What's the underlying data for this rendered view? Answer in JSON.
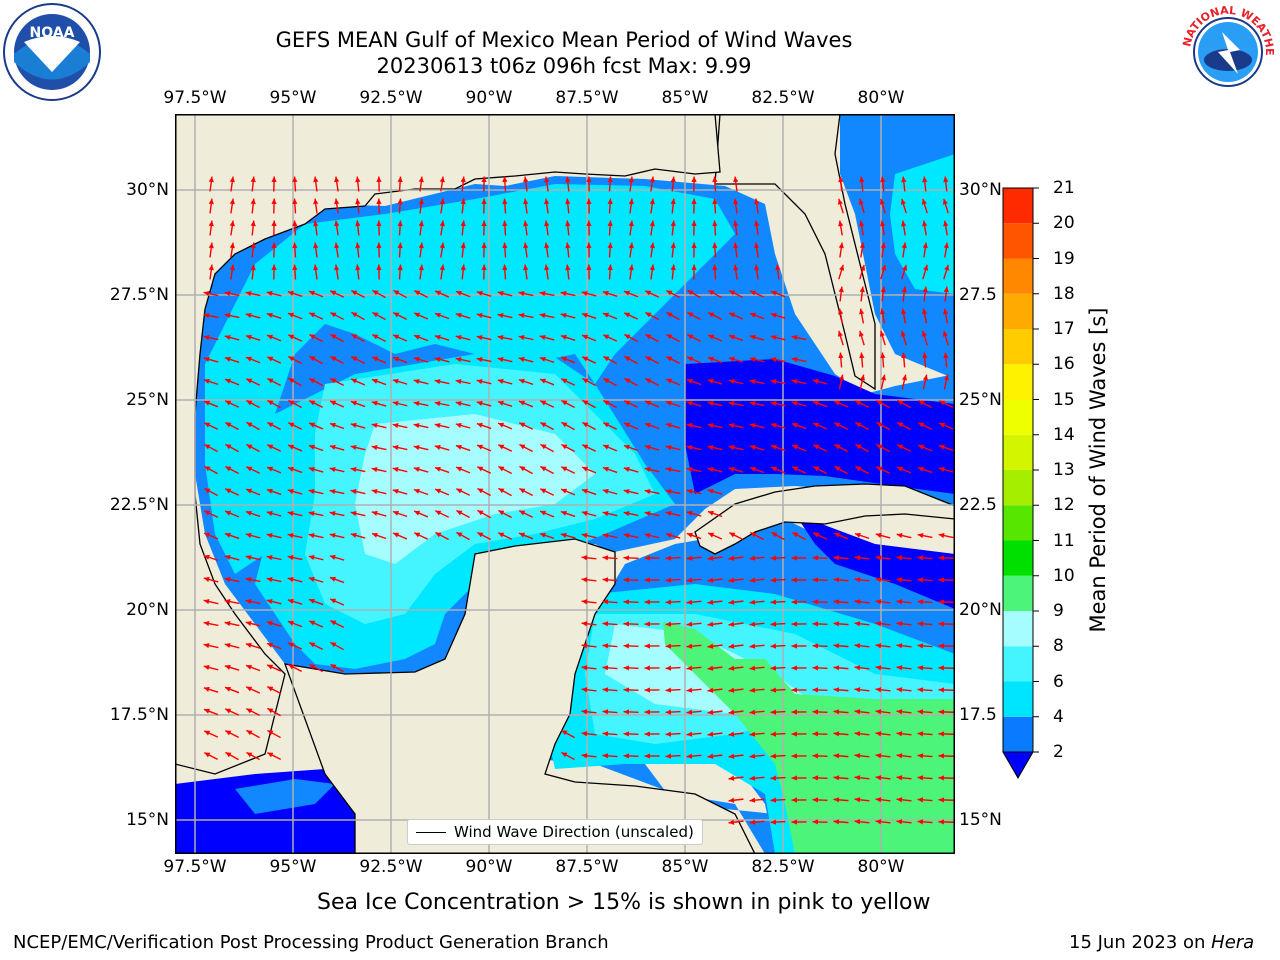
{
  "title": {
    "line1": "GEFS MEAN Gulf of Mexico Mean Period of Wind Waves",
    "line2": "20230613 t06z 096h fcst   Max: 9.99"
  },
  "map": {
    "lon_labels": [
      "97.5°W",
      "95°W",
      "92.5°W",
      "90°W",
      "87.5°W",
      "85°W",
      "82.5°W",
      "80°W"
    ],
    "lat_labels_left": [
      "30°N",
      "27.5°N",
      "25°N",
      "22.5°N",
      "20°N",
      "17.5°N",
      "15°N"
    ],
    "lat_labels_right": [
      "30°N",
      "27.5",
      "25°N",
      "22.5",
      "20°N",
      "17.5",
      "15°N"
    ],
    "legend_label": "Wind Wave Direction (unscaled)",
    "colors": {
      "land": "#efecd9",
      "coast": "#000000",
      "grid": "#b0b0b0",
      "arrow": "#ff0000"
    }
  },
  "colorbar": {
    "title": "Mean Period of Wind Waves [s]",
    "levels": [
      2,
      4,
      6,
      8,
      9,
      10,
      11,
      12,
      13,
      14,
      15,
      16,
      17,
      18,
      19,
      20,
      21
    ],
    "colors": [
      "#0a7bff",
      "#00e5ff",
      "#44f5ff",
      "#a6fdff",
      "#4cf57a",
      "#00e000",
      "#56e600",
      "#a6ee00",
      "#d4f500",
      "#eeff00",
      "#fff200",
      "#ffcc00",
      "#ffaa00",
      "#ff8800",
      "#ff5500",
      "#ff2a00"
    ],
    "extend_color": "#0000ff"
  },
  "caption": "Sea Ice Concentration > 15% is shown in pink to yellow",
  "footer": {
    "left": "NCEP/EMC/Verification Post Processing Product Generation Branch",
    "right_date": "15 Jun 2023 on ",
    "right_machine": "Hera"
  },
  "logos": {
    "noaa_text": "NOAA",
    "nws_text": "NATIONAL WEATHER SERVICE"
  }
}
